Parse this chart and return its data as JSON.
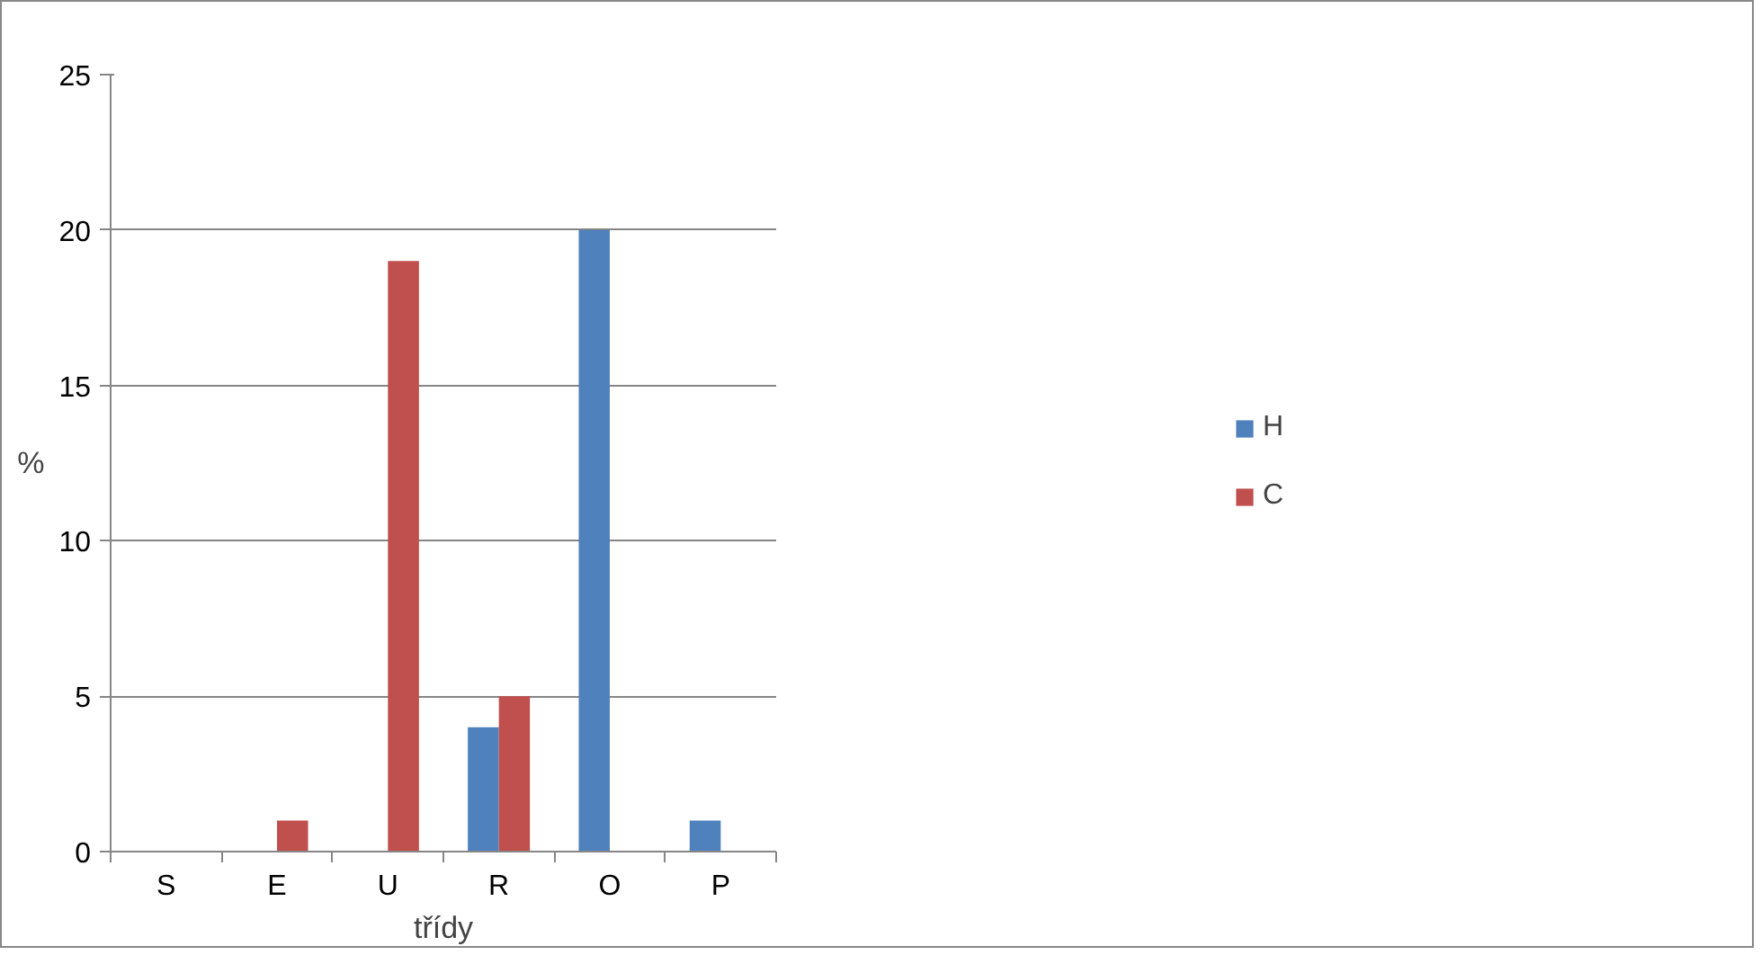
{
  "chart_data": {
    "type": "bar",
    "xlabel": "třídy",
    "ylabel": "%",
    "categories": [
      "S",
      "E",
      "U",
      "R",
      "O",
      "P"
    ],
    "series": [
      {
        "name": "H",
        "color": "#4f81bd",
        "values": [
          0,
          0,
          0,
          4,
          20,
          1
        ]
      },
      {
        "name": "C",
        "color": "#c0504d",
        "values": [
          0,
          1,
          19,
          5,
          0,
          0
        ]
      }
    ],
    "ylim": [
      0,
      25
    ],
    "yticks": [
      0,
      5,
      10,
      15,
      20,
      25
    ],
    "grid": "y",
    "legend": "right"
  }
}
